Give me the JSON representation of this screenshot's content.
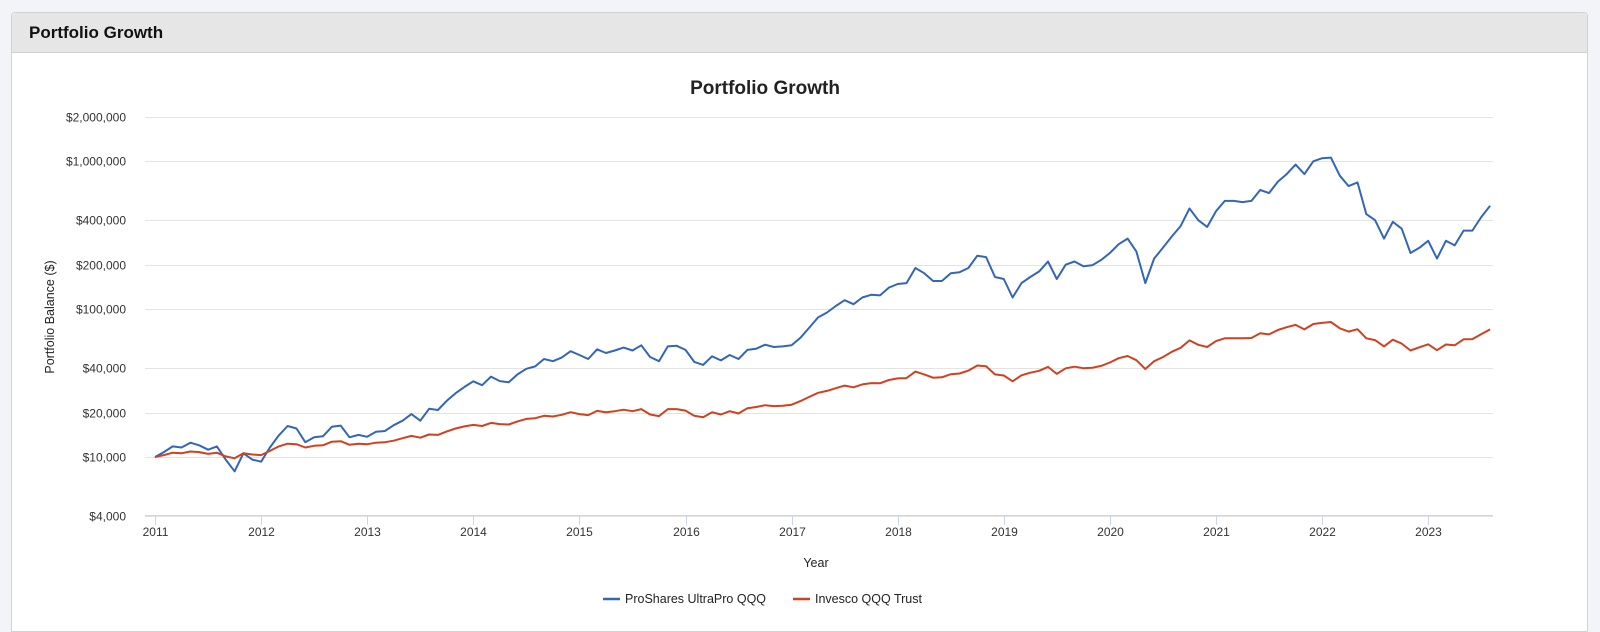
{
  "panel": {
    "title": "Portfolio Growth"
  },
  "colors": {
    "series1": "#3366b8",
    "series2": "#d0411f",
    "grid": "#e3e3e3"
  },
  "chart_data": {
    "type": "line",
    "title": "Portfolio Growth",
    "xlabel": "Year",
    "ylabel": "Portfolio Balance ($)",
    "yscale": "log",
    "ylim": [
      4000,
      2000000
    ],
    "xlim": [
      2011,
      2023.6
    ],
    "y_ticks": [
      {
        "value": 2000000,
        "label": "$2,000,000"
      },
      {
        "value": 1000000,
        "label": "$1,000,000"
      },
      {
        "value": 400000,
        "label": "$400,000"
      },
      {
        "value": 200000,
        "label": "$200,000"
      },
      {
        "value": 100000,
        "label": "$100,000"
      },
      {
        "value": 40000,
        "label": "$40,000"
      },
      {
        "value": 20000,
        "label": "$20,000"
      },
      {
        "value": 10000,
        "label": "$10,000"
      },
      {
        "value": 4000,
        "label": "$4,000"
      }
    ],
    "x_ticks": [
      "2011",
      "2012",
      "2013",
      "2014",
      "2015",
      "2016",
      "2017",
      "2018",
      "2019",
      "2020",
      "2021",
      "2022",
      "2023"
    ],
    "x_start": 2011,
    "x_step_months": 1,
    "legend": "bottom-center",
    "grid": true,
    "series": [
      {
        "name": "ProShares UltraPro QQQ",
        "color": "#3366b8",
        "values": [
          10000,
          10800,
          11800,
          11600,
          12500,
          12000,
          11200,
          11800,
          9600,
          8000,
          10600,
          9600,
          9300,
          11600,
          14000,
          16200,
          15600,
          12600,
          13600,
          13800,
          16000,
          16300,
          13600,
          14100,
          13700,
          14800,
          15000,
          16400,
          17600,
          19500,
          17600,
          21200,
          20800,
          24000,
          27000,
          29800,
          32500,
          30600,
          35000,
          32600,
          32000,
          36200,
          39500,
          41000,
          46000,
          44500,
          47000,
          52000,
          49000,
          46000,
          53500,
          50500,
          52500,
          55000,
          52500,
          57000,
          47500,
          44500,
          56000,
          56500,
          53000,
          44000,
          42000,
          48000,
          45000,
          49000,
          46000,
          53000,
          54000,
          57500,
          55500,
          56000,
          57000,
          64000,
          75000,
          88000,
          95000,
          105000,
          115000,
          108000,
          120000,
          125000,
          124000,
          140000,
          148000,
          150000,
          190000,
          175000,
          155000,
          155000,
          175000,
          178000,
          190000,
          230000,
          225000,
          165000,
          160000,
          120000,
          150000,
          165000,
          180000,
          210000,
          160000,
          200000,
          210000,
          195000,
          198000,
          215000,
          240000,
          275000,
          300000,
          245000,
          150000,
          220000,
          260000,
          310000,
          365000,
          480000,
          400000,
          360000,
          460000,
          540000,
          540000,
          530000,
          540000,
          640000,
          610000,
          730000,
          820000,
          950000,
          820000,
          1000000,
          1050000,
          1060000,
          800000,
          680000,
          720000,
          440000,
          400000,
          300000,
          390000,
          350000,
          240000,
          260000,
          290000,
          220000,
          290000,
          270000,
          340000,
          340000,
          420000,
          500000
        ]
      },
      {
        "name": "Invesco QQQ Trust",
        "color": "#d0411f",
        "values": [
          10000,
          10300,
          10700,
          10600,
          10900,
          10800,
          10500,
          10700,
          10100,
          9800,
          10600,
          10400,
          10300,
          11000,
          11800,
          12300,
          12200,
          11600,
          11900,
          12000,
          12700,
          12800,
          12100,
          12300,
          12200,
          12500,
          12600,
          12900,
          13400,
          13900,
          13500,
          14200,
          14100,
          14900,
          15600,
          16100,
          16500,
          16200,
          17000,
          16700,
          16600,
          17400,
          18100,
          18300,
          19000,
          18800,
          19300,
          20100,
          19500,
          19200,
          20500,
          20100,
          20400,
          20900,
          20400,
          21100,
          19400,
          18900,
          21100,
          21100,
          20600,
          19000,
          18600,
          20100,
          19400,
          20400,
          19700,
          21400,
          21800,
          22400,
          22100,
          22200,
          22600,
          23900,
          25500,
          27200,
          28000,
          29200,
          30400,
          29600,
          31000,
          31600,
          31500,
          33200,
          34000,
          34200,
          37800,
          36200,
          34400,
          34600,
          36300,
          36700,
          38400,
          41600,
          41100,
          36200,
          35600,
          32500,
          35700,
          37200,
          38300,
          40700,
          36500,
          39800,
          40800,
          39900,
          40100,
          41300,
          43600,
          46600,
          48200,
          45200,
          39400,
          44500,
          47400,
          51500,
          54800,
          61500,
          57400,
          55500,
          60800,
          63500,
          63600,
          63500,
          63800,
          68700,
          67500,
          72300,
          75500,
          78300,
          73000,
          79400,
          80800,
          81900,
          74200,
          70500,
          73200,
          63500,
          61800,
          56000,
          62200,
          58500,
          52500,
          55200,
          57900,
          52800,
          57700,
          57000,
          62500,
          62700,
          67800,
          73000
        ]
      }
    ]
  }
}
